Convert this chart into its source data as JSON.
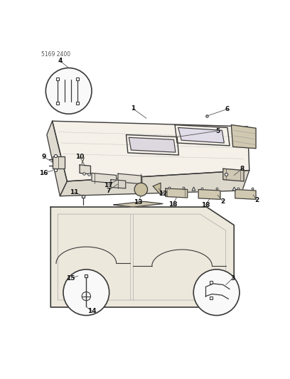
{
  "title": "5169 2400",
  "bg": "#ffffff",
  "lc": "#3a3a3a",
  "tc": "#222222",
  "fig_w": 4.08,
  "fig_h": 5.33,
  "dpi": 100,
  "hood_fill": "#f5f0e8",
  "body_fill": "#ede8dc",
  "cutout_fill": "#d8d2c4",
  "shelf_fill": "#d0c8b0",
  "circle_fill": "#f9f9f9"
}
